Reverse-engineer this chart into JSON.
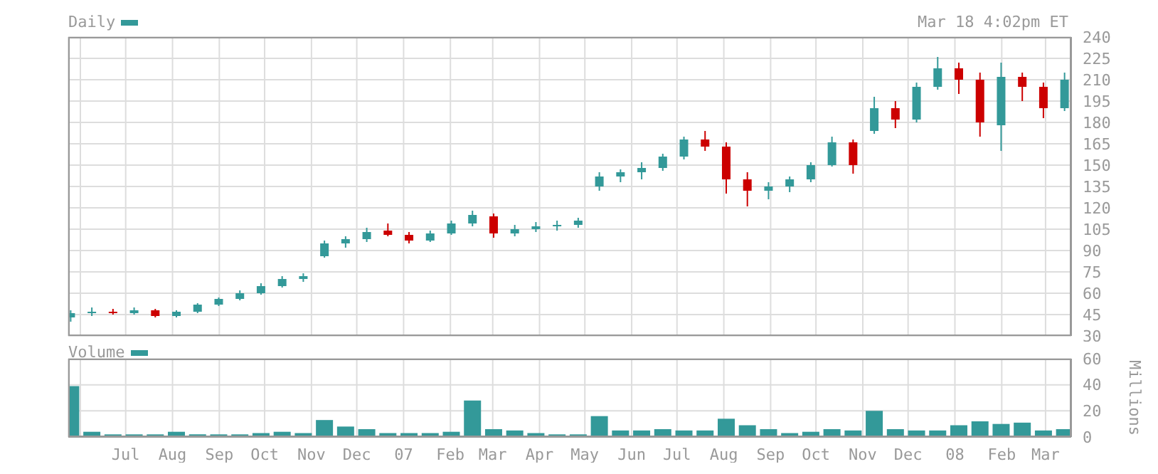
{
  "chart_data": [
    {
      "type": "candlestick",
      "title": "Daily",
      "annotations": [
        "Mar 18 4:02pm ET"
      ],
      "x": [
        "2006-05-26",
        "2006-06-09",
        "2006-06-23",
        "2006-07-07",
        "2006-07-21",
        "2006-08-04",
        "2006-08-18",
        "2006-09-01",
        "2006-09-15",
        "2006-09-29",
        "2006-10-13",
        "2006-10-27",
        "2006-11-10",
        "2006-11-24",
        "2006-12-08",
        "2006-12-22",
        "2007-01-05",
        "2007-01-19",
        "2007-02-02",
        "2007-02-16",
        "2007-03-02",
        "2007-03-16",
        "2007-03-30",
        "2007-04-13",
        "2007-04-27",
        "2007-05-11",
        "2007-05-25",
        "2007-06-08",
        "2007-06-22",
        "2007-07-06",
        "2007-07-20",
        "2007-08-03",
        "2007-08-17",
        "2007-08-31",
        "2007-09-14",
        "2007-09-28",
        "2007-10-12",
        "2007-10-26",
        "2007-11-09",
        "2007-11-23",
        "2007-12-07",
        "2007-12-21",
        "2008-01-04",
        "2008-01-18",
        "2008-02-01",
        "2008-02-15",
        "2008-02-29",
        "2008-03-14"
      ],
      "ohlc": [
        [
          43,
          48,
          40,
          46
        ],
        [
          46,
          50,
          44,
          47
        ],
        [
          47,
          49,
          45,
          46
        ],
        [
          46,
          50,
          45,
          48
        ],
        [
          48,
          49,
          43,
          44
        ],
        [
          44,
          48,
          43,
          47
        ],
        [
          47,
          53,
          46,
          52
        ],
        [
          52,
          57,
          51,
          56
        ],
        [
          56,
          62,
          55,
          60
        ],
        [
          60,
          67,
          59,
          65
        ],
        [
          65,
          72,
          64,
          70
        ],
        [
          70,
          74,
          68,
          72
        ],
        [
          86,
          97,
          85,
          95
        ],
        [
          95,
          100,
          92,
          98
        ],
        [
          98,
          106,
          96,
          103
        ],
        [
          104,
          109,
          100,
          101
        ],
        [
          101,
          103,
          95,
          97
        ],
        [
          97,
          104,
          96,
          102
        ],
        [
          102,
          111,
          101,
          109
        ],
        [
          109,
          118,
          107,
          115
        ],
        [
          114,
          116,
          99,
          102
        ],
        [
          102,
          108,
          100,
          105
        ],
        [
          105,
          110,
          103,
          107
        ],
        [
          107,
          111,
          104,
          108
        ],
        [
          108,
          113,
          106,
          111
        ],
        [
          135,
          145,
          132,
          142
        ],
        [
          142,
          147,
          138,
          145
        ],
        [
          145,
          152,
          140,
          148
        ],
        [
          148,
          158,
          146,
          156
        ],
        [
          156,
          170,
          154,
          168
        ],
        [
          168,
          174,
          160,
          163
        ],
        [
          163,
          166,
          130,
          140
        ],
        [
          140,
          145,
          121,
          132
        ],
        [
          132,
          138,
          126,
          135
        ],
        [
          135,
          142,
          131,
          140
        ],
        [
          140,
          152,
          138,
          150
        ],
        [
          150,
          170,
          149,
          166
        ],
        [
          166,
          168,
          144,
          150
        ],
        [
          174,
          198,
          172,
          190
        ],
        [
          190,
          195,
          176,
          182
        ],
        [
          182,
          208,
          180,
          205
        ],
        [
          205,
          226,
          203,
          218
        ],
        [
          218,
          222,
          200,
          210
        ],
        [
          210,
          215,
          170,
          180
        ],
        [
          178,
          222,
          160,
          212
        ],
        [
          212,
          215,
          195,
          205
        ],
        [
          205,
          208,
          183,
          190
        ],
        [
          190,
          215,
          188,
          210
        ]
      ],
      "colors": [
        "#339999",
        "#339999",
        "#cc0000",
        "#339999",
        "#cc0000",
        "#339999",
        "#339999",
        "#339999",
        "#339999",
        "#339999",
        "#339999",
        "#339999",
        "#339999",
        "#339999",
        "#339999",
        "#cc0000",
        "#cc0000",
        "#339999",
        "#339999",
        "#339999",
        "#cc0000",
        "#339999",
        "#339999",
        "#339999",
        "#339999",
        "#339999",
        "#339999",
        "#339999",
        "#339999",
        "#339999",
        "#cc0000",
        "#cc0000",
        "#cc0000",
        "#339999",
        "#339999",
        "#339999",
        "#339999",
        "#cc0000",
        "#339999",
        "#cc0000",
        "#339999",
        "#339999",
        "#cc0000",
        "#cc0000",
        "#339999",
        "#cc0000",
        "#cc0000",
        "#339999"
      ],
      "xlim": [
        "2006-05-24",
        "2008-03-18"
      ],
      "xticks": [
        {
          "value": "2006-06-01",
          "label": null
        },
        {
          "value": "2006-07-01",
          "label": null
        },
        {
          "value": "2006-08-01",
          "label": null
        },
        {
          "value": "2006-09-01",
          "label": null
        },
        {
          "value": "2006-10-01",
          "label": null
        },
        {
          "value": "2006-11-01",
          "label": null
        },
        {
          "value": "2006-12-01",
          "label": null
        },
        {
          "value": "2007-01-01",
          "label": null
        },
        {
          "value": "2007-02-01",
          "label": null
        },
        {
          "value": "2007-03-01",
          "label": null
        },
        {
          "value": "2007-04-01",
          "label": null
        },
        {
          "value": "2007-05-01",
          "label": null
        },
        {
          "value": "2007-06-01",
          "label": null
        },
        {
          "value": "2007-07-01",
          "label": null
        },
        {
          "value": "2007-08-01",
          "label": null
        },
        {
          "value": "2007-09-01",
          "label": null
        },
        {
          "value": "2007-10-01",
          "label": null
        },
        {
          "value": "2007-11-01",
          "label": null
        },
        {
          "value": "2007-12-01",
          "label": null
        },
        {
          "value": "2008-01-01",
          "label": null
        },
        {
          "value": "2008-02-01",
          "label": null
        },
        {
          "value": "2008-03-01",
          "label": null
        }
      ],
      "ylim": [
        30,
        240
      ],
      "yticks": [
        30,
        45,
        60,
        75,
        90,
        105,
        120,
        135,
        150,
        165,
        180,
        195,
        210,
        225,
        240
      ],
      "grid": true,
      "tick_labels": "y"
    },
    {
      "type": "bar",
      "title": "Volume",
      "ylabel": "Millions",
      "x": [
        "2006-05-26",
        "2006-06-09",
        "2006-06-23",
        "2006-07-07",
        "2006-07-21",
        "2006-08-04",
        "2006-08-18",
        "2006-09-01",
        "2006-09-15",
        "2006-09-29",
        "2006-10-13",
        "2006-10-27",
        "2006-11-10",
        "2006-11-24",
        "2006-12-08",
        "2006-12-22",
        "2007-01-05",
        "2007-01-19",
        "2007-02-02",
        "2007-02-16",
        "2007-03-02",
        "2007-03-16",
        "2007-03-30",
        "2007-04-13",
        "2007-04-27",
        "2007-05-11",
        "2007-05-25",
        "2007-06-08",
        "2007-06-22",
        "2007-07-06",
        "2007-07-20",
        "2007-08-03",
        "2007-08-17",
        "2007-08-31",
        "2007-09-14",
        "2007-09-28",
        "2007-10-12",
        "2007-10-26",
        "2007-11-09",
        "2007-11-23",
        "2007-12-07",
        "2007-12-21",
        "2008-01-04",
        "2008-01-18",
        "2008-02-01",
        "2008-02-15",
        "2008-02-29",
        "2008-03-14"
      ],
      "values": [
        39,
        4,
        2,
        2,
        2,
        4,
        2,
        2,
        2,
        3,
        4,
        3,
        13,
        8,
        6,
        3,
        3,
        3,
        4,
        28,
        6,
        5,
        3,
        2,
        2,
        16,
        5,
        5,
        6,
        5,
        5,
        14,
        9,
        6,
        3,
        4,
        6,
        5,
        20,
        6,
        5,
        5,
        9,
        12,
        10,
        11,
        5,
        6
      ],
      "color": "#339999",
      "xlim": [
        "2006-05-24",
        "2008-03-18"
      ],
      "xticks": [
        {
          "value": "2006-06-01",
          "label": null
        },
        {
          "value": "2006-07-01",
          "label": "Jul"
        },
        {
          "value": "2006-08-01",
          "label": "Aug"
        },
        {
          "value": "2006-09-01",
          "label": "Sep"
        },
        {
          "value": "2006-10-01",
          "label": "Oct"
        },
        {
          "value": "2006-11-01",
          "label": "Nov"
        },
        {
          "value": "2006-12-01",
          "label": "Dec"
        },
        {
          "value": "2007-01-01",
          "label": "07"
        },
        {
          "value": "2007-02-01",
          "label": "Feb"
        },
        {
          "value": "2007-03-01",
          "label": "Mar"
        },
        {
          "value": "2007-04-01",
          "label": "Apr"
        },
        {
          "value": "2007-05-01",
          "label": "May"
        },
        {
          "value": "2007-06-01",
          "label": "Jun"
        },
        {
          "value": "2007-07-01",
          "label": "Jul"
        },
        {
          "value": "2007-08-01",
          "label": "Aug"
        },
        {
          "value": "2007-09-01",
          "label": "Sep"
        },
        {
          "value": "2007-10-01",
          "label": "Oct"
        },
        {
          "value": "2007-11-01",
          "label": "Nov"
        },
        {
          "value": "2007-12-01",
          "label": "Dec"
        },
        {
          "value": "2008-01-01",
          "label": "08"
        },
        {
          "value": "2008-02-01",
          "label": "Feb"
        },
        {
          "value": "2008-03-01",
          "label": "Mar"
        }
      ],
      "ylim": [
        0,
        60
      ],
      "yticks": [
        0,
        20,
        40,
        60
      ],
      "grid": true
    }
  ]
}
